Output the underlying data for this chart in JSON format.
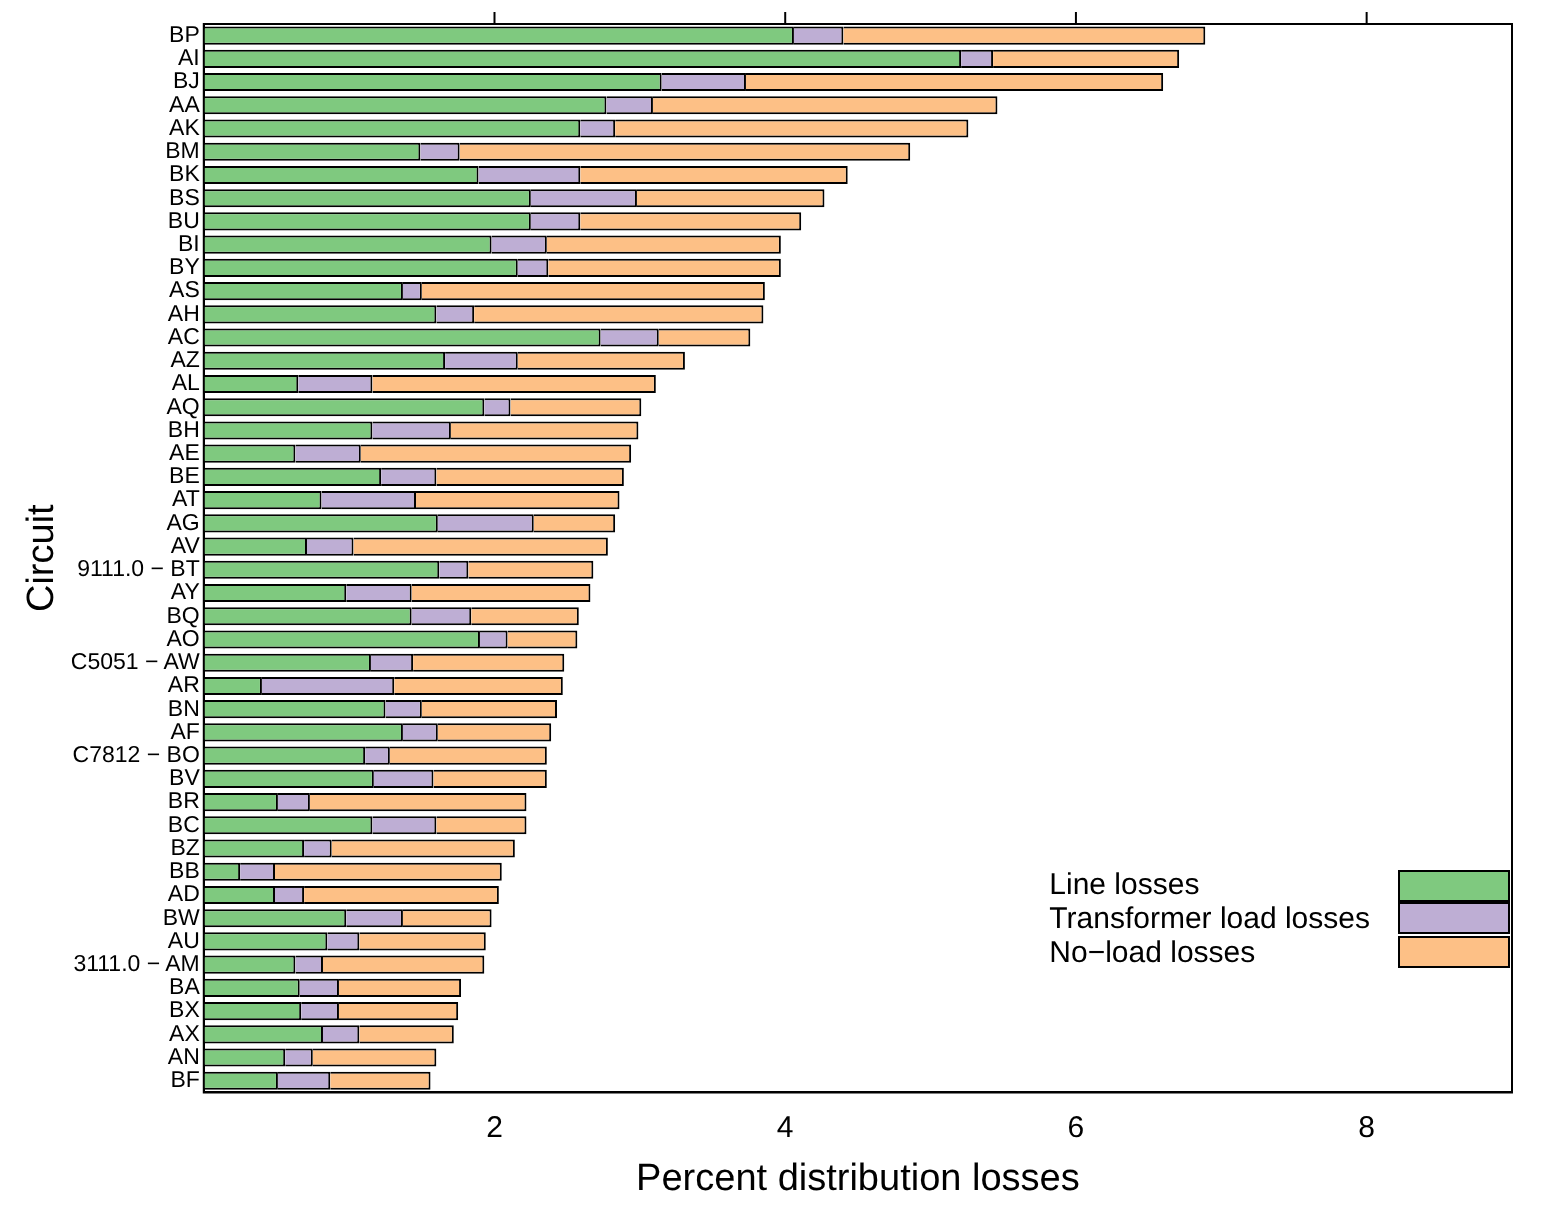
{
  "chart_data": {
    "type": "bar",
    "orientation": "horizontal",
    "stacked": true,
    "xlabel": "Percent distribution losses",
    "ylabel": "Circuit",
    "categories": [
      "BP",
      "AI",
      "BJ",
      "AA",
      "AK",
      "BM",
      "BK",
      "BS",
      "BU",
      "BI",
      "BY",
      "AS",
      "AH",
      "AC",
      "AZ",
      "AL",
      "AQ",
      "BH",
      "AE",
      "BE",
      "AT",
      "AG",
      "AV",
      "9111.0 − BT",
      "AY",
      "BQ",
      "AO",
      "C5051 − AW",
      "AR",
      "BN",
      "AF",
      "C7812 − BO",
      "BV",
      "BR",
      "BC",
      "BZ",
      "BB",
      "AD",
      "BW",
      "AU",
      "3111.0 − AM",
      "BA",
      "BX",
      "AX",
      "AN",
      "BF"
    ],
    "series": [
      {
        "name": "Line losses",
        "color": "#7fc97f",
        "values": [
          4.06,
          5.21,
          3.15,
          2.77,
          2.59,
          1.49,
          1.89,
          2.25,
          2.25,
          1.98,
          2.16,
          1.37,
          1.6,
          2.73,
          1.66,
          0.65,
          1.93,
          1.16,
          0.63,
          1.22,
          0.81,
          1.61,
          0.71,
          1.62,
          0.98,
          1.43,
          1.9,
          1.15,
          0.4,
          1.25,
          1.37,
          1.11,
          1.17,
          0.51,
          1.16,
          0.69,
          0.25,
          0.49,
          0.98,
          0.85,
          0.63,
          0.66,
          0.67,
          0.82,
          0.56,
          0.51
        ]
      },
      {
        "name": "Transformer load losses",
        "color": "#beaed4",
        "values": [
          0.34,
          0.22,
          0.58,
          0.32,
          0.24,
          0.27,
          0.7,
          0.73,
          0.34,
          0.38,
          0.21,
          0.13,
          0.26,
          0.4,
          0.5,
          0.51,
          0.18,
          0.54,
          0.45,
          0.38,
          0.65,
          0.66,
          0.32,
          0.2,
          0.45,
          0.41,
          0.19,
          0.29,
          0.91,
          0.25,
          0.24,
          0.17,
          0.41,
          0.22,
          0.44,
          0.19,
          0.24,
          0.2,
          0.39,
          0.22,
          0.19,
          0.27,
          0.26,
          0.25,
          0.19,
          0.36
        ]
      },
      {
        "name": "No−load losses",
        "color": "#fdc086",
        "values": [
          2.49,
          1.28,
          2.87,
          2.37,
          2.43,
          3.1,
          1.84,
          1.29,
          1.52,
          1.61,
          1.6,
          2.36,
          1.99,
          0.63,
          1.15,
          1.95,
          0.9,
          1.29,
          1.86,
          1.29,
          1.4,
          0.56,
          1.75,
          0.86,
          1.23,
          0.74,
          0.48,
          1.04,
          1.16,
          0.93,
          0.78,
          1.08,
          0.78,
          1.49,
          0.62,
          1.26,
          1.56,
          1.34,
          0.61,
          0.87,
          1.11,
          0.84,
          0.82,
          0.65,
          0.85,
          0.69
        ]
      }
    ],
    "xlim": [
      0,
      9.0
    ],
    "xticks": [
      2,
      4,
      6,
      8
    ],
    "grid": false,
    "legend": "bottom right"
  }
}
